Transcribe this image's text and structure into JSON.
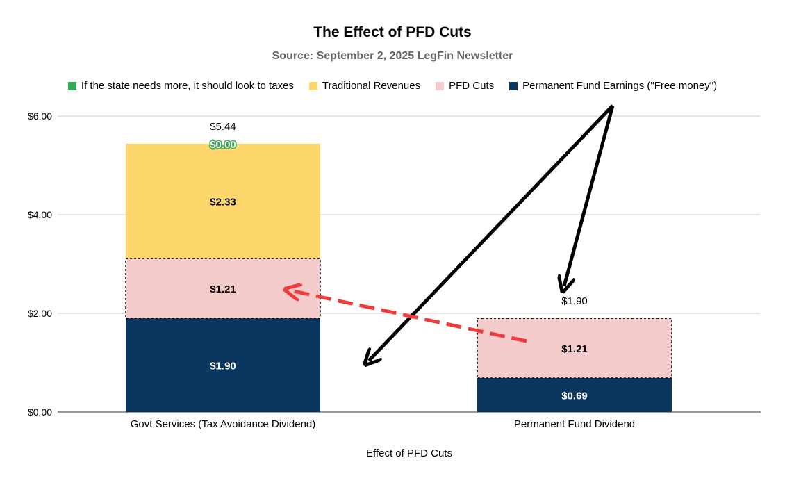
{
  "chart_data": {
    "type": "bar",
    "stacked": true,
    "title": "The Effect of PFD Cuts",
    "subtitle": "Source: September 2, 2025 LegFin Newsletter",
    "xlabel": "Effect of PFD Cuts",
    "ylabel": "",
    "ylim": [
      0,
      6
    ],
    "yticks": [
      "$0.00",
      "$2.00",
      "$4.00",
      "$6.00"
    ],
    "ytick_values": [
      0,
      2,
      4,
      6
    ],
    "grid": true,
    "legend_position": "top",
    "categories": [
      "Govt Services (Tax Avoidance Dividend)",
      "Permanent Fund Dividend"
    ],
    "series": [
      {
        "name": "Permanent Fund Earnings (\"Free money\")",
        "color": "#0b3660",
        "label_color": "#ffffff",
        "values": [
          1.9,
          0.69
        ],
        "labels": [
          "$1.90",
          "$0.69"
        ],
        "dashed": [
          false,
          false
        ]
      },
      {
        "name": "PFD Cuts",
        "color": "#f4cccc",
        "label_color": "#000000",
        "values": [
          1.21,
          1.21
        ],
        "labels": [
          "$1.21",
          "$1.21"
        ],
        "dashed": [
          true,
          true
        ]
      },
      {
        "name": "Traditional Revenues",
        "color": "#fdd76b",
        "label_color": "#000000",
        "values": [
          2.33,
          0
        ],
        "labels": [
          "$2.33",
          ""
        ],
        "dashed": [
          false,
          false
        ]
      },
      {
        "name": "If the state needs more, it should look to taxes",
        "color": "#34a853",
        "label_color": "#ffffff",
        "values": [
          0,
          0
        ],
        "labels": [
          "$0.00",
          ""
        ],
        "dashed": [
          false,
          false
        ]
      }
    ],
    "totals": [
      5.44,
      1.9
    ],
    "total_labels": [
      "$5.44",
      "$1.90"
    ]
  },
  "legend_order": [
    3,
    2,
    1,
    0
  ]
}
